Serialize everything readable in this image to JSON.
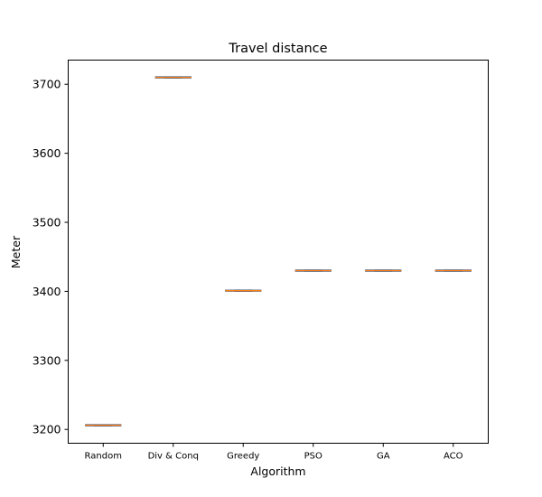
{
  "chart_data": {
    "type": "box",
    "title": "Travel distance",
    "xlabel": "Algorithm",
    "ylabel": "Meter",
    "categories": [
      "Random",
      "Div & Conq",
      "Greedy",
      "PSO",
      "GA",
      "ACO"
    ],
    "values": [
      3206,
      3710,
      3401,
      3430,
      3430,
      3430
    ],
    "ylim": [
      3180,
      3735
    ],
    "yticks": [
      3200,
      3300,
      3400,
      3500,
      3600,
      3700
    ],
    "grid": false,
    "legend": "none",
    "colors": {
      "box": "#1f3f73",
      "median": "#ff7f0e",
      "axes": "#000000"
    }
  }
}
